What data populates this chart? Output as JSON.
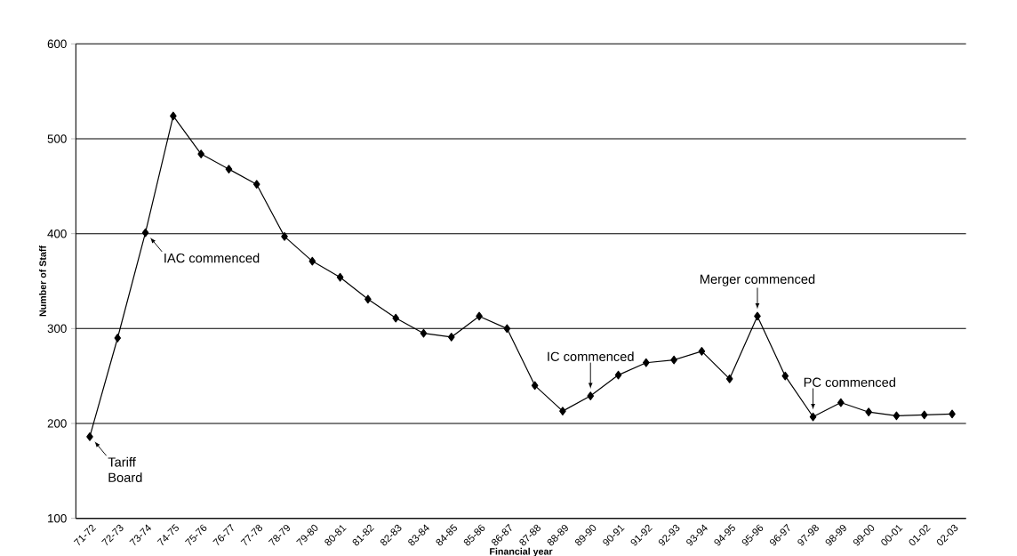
{
  "chart_data": {
    "type": "line",
    "xlabel": "Financial year",
    "ylabel": "Number of Staff",
    "categories": [
      "71-72",
      "72-73",
      "73-74",
      "74-75",
      "75-76",
      "76-77",
      "77-78",
      "78-79",
      "79-80",
      "80-81",
      "81-82",
      "82-83",
      "83-84",
      "84-85",
      "85-86",
      "86-87",
      "87-88",
      "88-89",
      "89-90",
      "90-91",
      "91-92",
      "92-93",
      "93-94",
      "94-95",
      "95-96",
      "96-97",
      "97-98",
      "98-99",
      "99-00",
      "00-01",
      "01-02",
      "02-03"
    ],
    "values": [
      186,
      290,
      401,
      524,
      484,
      468,
      452,
      397,
      371,
      354,
      331,
      311,
      295,
      291,
      313,
      300,
      240,
      213,
      229,
      251,
      264,
      267,
      276,
      247,
      313,
      250,
      207,
      222,
      212,
      208,
      209,
      210
    ],
    "color": "#000000",
    "marker": "diamond",
    "line_style": "solid",
    "ylim": [
      100,
      600
    ],
    "yticks": [
      100,
      200,
      300,
      400,
      500,
      600
    ],
    "grid": "y",
    "annotations": [
      {
        "text": "Tariff Board",
        "x": "71-72",
        "y": 186
      },
      {
        "text": "IAC commenced",
        "x": "73-74",
        "y": 401
      },
      {
        "text": "IC  commenced",
        "x": "89-90",
        "y": 229
      },
      {
        "text": "Merger commenced",
        "x": "95-96",
        "y": 313
      },
      {
        "text": "PC commenced",
        "x": "97-98",
        "y": 207
      }
    ]
  }
}
